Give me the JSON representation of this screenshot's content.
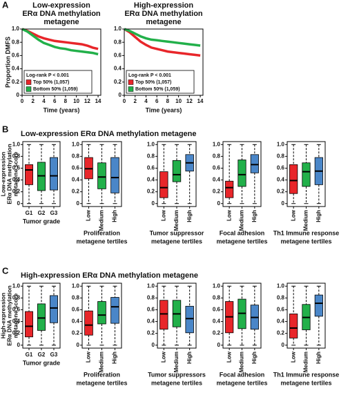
{
  "panel_labels": [
    "A",
    "B",
    "C"
  ],
  "section_titles": [
    "Low-expression ERα DNA methylation metagene",
    "High-expression ERα DNA methylation metagene"
  ],
  "chart_data": [
    {
      "type": "line",
      "title": [
        "Low-expression",
        "ERα DNA methylation",
        "metagene"
      ],
      "ylabel": "Proportion DMFS",
      "xlabel": "Time (years)",
      "x": [
        0,
        1,
        2,
        3,
        4,
        5,
        6,
        7,
        8,
        9,
        10,
        11,
        12,
        13,
        14
      ],
      "series": [
        {
          "name": "Top 50% (1,057)",
          "color": "#e8262a",
          "values": [
            1,
            0.97,
            0.93,
            0.89,
            0.86,
            0.84,
            0.82,
            0.81,
            0.8,
            0.79,
            0.78,
            0.77,
            0.75,
            0.72,
            0.7
          ]
        },
        {
          "name": "Bottom 50% (1,059)",
          "color": "#22b04a",
          "values": [
            1,
            0.96,
            0.9,
            0.84,
            0.79,
            0.76,
            0.73,
            0.71,
            0.7,
            0.68,
            0.67,
            0.66,
            0.65,
            0.64,
            0.62
          ]
        }
      ],
      "annotation": "Log-rank P < 0.001",
      "xlim": [
        0,
        14.5
      ],
      "ylim": [
        0,
        1
      ],
      "xticks": [
        0,
        2,
        4,
        6,
        8,
        10,
        12,
        14
      ],
      "yticks": [
        0,
        0.2,
        0.4,
        0.6,
        0.8,
        {
          "value": 1,
          "label": "1.0"
        }
      ]
    },
    {
      "type": "line",
      "title": [
        "High-expression",
        "ERα DNA methylation",
        "metagene"
      ],
      "xlabel": "Time (years)",
      "x": [
        0,
        1,
        2,
        3,
        4,
        5,
        6,
        7,
        8,
        9,
        10,
        11,
        12,
        13,
        14
      ],
      "series": [
        {
          "name": "Top 50% (1,057)",
          "color": "#e8262a",
          "values": [
            1,
            0.95,
            0.88,
            0.81,
            0.76,
            0.72,
            0.7,
            0.68,
            0.66,
            0.65,
            0.64,
            0.63,
            0.62,
            0.61,
            0.6
          ]
        },
        {
          "name": "Bottom 50% (1,059)",
          "color": "#22b04a",
          "values": [
            1,
            0.97,
            0.93,
            0.89,
            0.86,
            0.84,
            0.83,
            0.82,
            0.81,
            0.8,
            0.79,
            0.78,
            0.77,
            0.76,
            0.75
          ]
        }
      ],
      "annotation": "Log-rank P < 0.001",
      "xlim": [
        0,
        14.5
      ],
      "ylim": [
        0,
        1
      ],
      "xticks": [
        0,
        2,
        4,
        6,
        8,
        10,
        12,
        14
      ],
      "yticks": [
        0,
        0.2,
        0.4,
        0.6,
        0.8,
        {
          "value": 1,
          "label": "1.0"
        }
      ]
    },
    {
      "type": "box",
      "categories": [
        "G1",
        "G2",
        "G3"
      ],
      "rotated_labels": false,
      "xlabel": [
        "Tumor grade"
      ],
      "ylabel": [
        "Low-expression",
        "ERα DNA methylation",
        "metagene score"
      ],
      "colors": [
        "#e8262a",
        "#22b04a",
        "#4a86c8"
      ],
      "boxes": [
        {
          "min": 0,
          "q1": 0.32,
          "median": 0.57,
          "q3": 0.66,
          "max": 1
        },
        {
          "min": 0,
          "q1": 0.22,
          "median": 0.47,
          "q3": 0.7,
          "max": 1
        },
        {
          "min": 0,
          "q1": 0.23,
          "median": 0.47,
          "q3": 0.78,
          "max": 1
        }
      ],
      "ylim": [
        -0.05,
        1.05
      ],
      "yticks": [
        0,
        0.2,
        0.4,
        0.6,
        0.8,
        {
          "value": 1,
          "label": "1.0"
        }
      ]
    },
    {
      "type": "box",
      "categories": [
        "Low",
        "Medium",
        "High"
      ],
      "rotated_labels": true,
      "xlabel": [
        "Proliferation",
        "metagene tertiles"
      ],
      "colors": [
        "#e8262a",
        "#22b04a",
        "#4a86c8"
      ],
      "boxes": [
        {
          "min": 0,
          "q1": 0.42,
          "median": 0.59,
          "q3": 0.78,
          "max": 1
        },
        {
          "min": 0,
          "q1": 0.25,
          "median": 0.45,
          "q3": 0.69,
          "max": 1
        },
        {
          "min": 0,
          "q1": 0.18,
          "median": 0.44,
          "q3": 0.78,
          "max": 1
        }
      ],
      "ylim": [
        -0.05,
        1.05
      ],
      "yticks": [
        0,
        0.2,
        0.4,
        0.6,
        0.8,
        {
          "value": 1,
          "label": "1.0"
        }
      ]
    },
    {
      "type": "box",
      "categories": [
        "Low",
        "Medium",
        "High"
      ],
      "rotated_labels": true,
      "xlabel": [
        "Tumor suppressor",
        "metagene tertiles"
      ],
      "colors": [
        "#e8262a",
        "#22b04a",
        "#4a86c8"
      ],
      "boxes": [
        {
          "min": 0,
          "q1": 0.1,
          "median": 0.27,
          "q3": 0.54,
          "max": 1
        },
        {
          "min": 0,
          "q1": 0.37,
          "median": 0.49,
          "q3": 0.73,
          "max": 1
        },
        {
          "min": 0,
          "q1": 0.55,
          "median": 0.69,
          "q3": 0.83,
          "max": 1
        }
      ],
      "ylim": [
        -0.05,
        1.05
      ],
      "yticks": [
        0,
        0.2,
        0.4,
        0.6,
        0.8,
        {
          "value": 1,
          "label": "1.0"
        }
      ]
    },
    {
      "type": "box",
      "categories": [
        "Low",
        "Medium",
        "High"
      ],
      "rotated_labels": true,
      "xlabel": [
        "Focal adhesion",
        "metagene tertiles"
      ],
      "colors": [
        "#e8262a",
        "#22b04a",
        "#4a86c8"
      ],
      "boxes": [
        {
          "min": 0,
          "q1": 0.1,
          "median": 0.27,
          "q3": 0.38,
          "max": 1
        },
        {
          "min": 0,
          "q1": 0.29,
          "median": 0.49,
          "q3": 0.74,
          "max": 1
        },
        {
          "min": 0,
          "q1": 0.52,
          "median": 0.66,
          "q3": 0.83,
          "max": 1
        }
      ],
      "ylim": [
        -0.05,
        1.05
      ],
      "yticks": [
        0,
        0.2,
        0.4,
        0.6,
        0.8,
        {
          "value": 1,
          "label": "1.0"
        }
      ]
    },
    {
      "type": "box",
      "categories": [
        "Low",
        "Medium",
        "High"
      ],
      "rotated_labels": true,
      "xlabel": [
        "Th1 Immune response",
        "metagene tertiles"
      ],
      "colors": [
        "#e8262a",
        "#22b04a",
        "#4a86c8"
      ],
      "boxes": [
        {
          "min": 0,
          "q1": 0.17,
          "median": 0.39,
          "q3": 0.66,
          "max": 1
        },
        {
          "min": 0,
          "q1": 0.29,
          "median": 0.54,
          "q3": 0.69,
          "max": 1
        },
        {
          "min": 0,
          "q1": 0.32,
          "median": 0.55,
          "q3": 0.78,
          "max": 1
        }
      ],
      "ylim": [
        -0.05,
        1.05
      ],
      "yticks": [
        0,
        0.2,
        0.4,
        0.6,
        0.8,
        {
          "value": 1,
          "label": "1.0"
        }
      ]
    },
    {
      "type": "box",
      "categories": [
        "G1",
        "G2",
        "G3"
      ],
      "rotated_labels": false,
      "xlabel": [
        "Tumor grade"
      ],
      "ylabel": [
        "High-expression",
        "ERα DNA methylation",
        "metagene score"
      ],
      "colors": [
        "#e8262a",
        "#22b04a",
        "#4a86c8"
      ],
      "boxes": [
        {
          "min": 0,
          "q1": 0.14,
          "median": 0.32,
          "q3": 0.57,
          "max": 1
        },
        {
          "min": 0,
          "q1": 0.25,
          "median": 0.46,
          "q3": 0.7,
          "max": 1
        },
        {
          "min": 0,
          "q1": 0.38,
          "median": 0.63,
          "q3": 0.84,
          "max": 1
        }
      ],
      "ylim": [
        -0.05,
        1.05
      ],
      "yticks": [
        0,
        0.2,
        0.4,
        0.6,
        0.8,
        {
          "value": 1,
          "label": "1.0"
        }
      ]
    },
    {
      "type": "box",
      "categories": [
        "Low",
        "Medium",
        "High"
      ],
      "rotated_labels": true,
      "xlabel": [
        "Proliferation",
        "metagene tertiles"
      ],
      "colors": [
        "#e8262a",
        "#22b04a",
        "#4a86c8"
      ],
      "boxes": [
        {
          "min": 0,
          "q1": 0.17,
          "median": 0.34,
          "q3": 0.58,
          "max": 1
        },
        {
          "min": 0,
          "q1": 0.36,
          "median": 0.51,
          "q3": 0.74,
          "max": 1
        },
        {
          "min": 0,
          "q1": 0.37,
          "median": 0.65,
          "q3": 0.81,
          "max": 1
        }
      ],
      "ylim": [
        -0.05,
        1.05
      ],
      "yticks": [
        0,
        0.2,
        0.4,
        0.6,
        0.8,
        {
          "value": 1,
          "label": "1.0"
        }
      ]
    },
    {
      "type": "box",
      "categories": [
        "Low",
        "Medium",
        "High"
      ],
      "rotated_labels": true,
      "xlabel": [
        "Tumor suppressors",
        "metagene tertiles"
      ],
      "colors": [
        "#e8262a",
        "#22b04a",
        "#4a86c8"
      ],
      "boxes": [
        {
          "min": 0,
          "q1": 0.27,
          "median": 0.53,
          "q3": 0.76,
          "max": 1
        },
        {
          "min": 0,
          "q1": 0.31,
          "median": 0.53,
          "q3": 0.76,
          "max": 1
        },
        {
          "min": 0,
          "q1": 0.21,
          "median": 0.45,
          "q3": 0.66,
          "max": 1
        }
      ],
      "ylim": [
        -0.05,
        1.05
      ],
      "yticks": [
        0,
        0.2,
        0.4,
        0.6,
        0.8,
        {
          "value": 1,
          "label": "1.0"
        }
      ]
    },
    {
      "type": "box",
      "categories": [
        "Low",
        "Medium",
        "High"
      ],
      "rotated_labels": true,
      "xlabel": [
        "Focal adhesion",
        "metagene tertiles"
      ],
      "colors": [
        "#e8262a",
        "#22b04a",
        "#4a86c8"
      ],
      "boxes": [
        {
          "min": 0,
          "q1": 0.21,
          "median": 0.48,
          "q3": 0.74,
          "max": 1
        },
        {
          "min": 0,
          "q1": 0.28,
          "median": 0.54,
          "q3": 0.78,
          "max": 1
        },
        {
          "min": 0,
          "q1": 0.27,
          "median": 0.47,
          "q3": 0.68,
          "max": 1
        }
      ],
      "ylim": [
        -0.05,
        1.05
      ],
      "yticks": [
        0,
        0.2,
        0.4,
        0.6,
        0.8,
        {
          "value": 1,
          "label": "1.0"
        }
      ]
    },
    {
      "type": "box",
      "categories": [
        "Low",
        "Medium",
        "High"
      ],
      "rotated_labels": true,
      "xlabel": [
        "Th1 Immune response",
        "metagene tertiles"
      ],
      "colors": [
        "#e8262a",
        "#22b04a",
        "#4a86c8"
      ],
      "boxes": [
        {
          "min": 0,
          "q1": 0.12,
          "median": 0.29,
          "q3": 0.53,
          "max": 1
        },
        {
          "min": 0,
          "q1": 0.26,
          "median": 0.47,
          "q3": 0.69,
          "max": 1
        },
        {
          "min": 0,
          "q1": 0.49,
          "median": 0.71,
          "q3": 0.85,
          "max": 1
        }
      ],
      "ylim": [
        -0.05,
        1.05
      ],
      "yticks": [
        0,
        0.2,
        0.4,
        0.6,
        0.8,
        {
          "value": 1,
          "label": "1.0"
        }
      ]
    }
  ]
}
